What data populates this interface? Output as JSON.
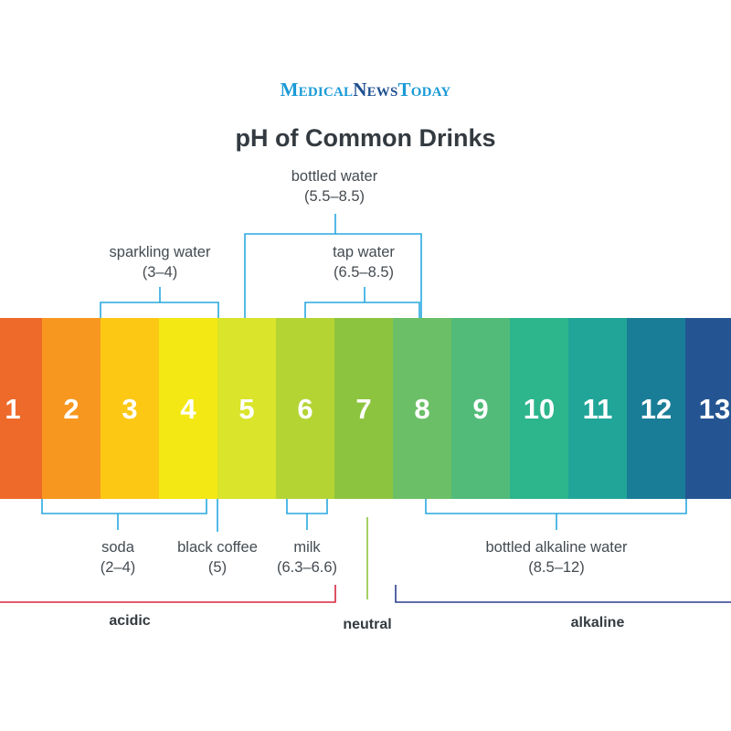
{
  "header": {
    "logo": {
      "m": "M",
      "edical": "EDICAL",
      "n": "N",
      "ews": "EWS",
      "t": "T",
      "oday": "ODAY"
    },
    "title": "pH of Common Drinks"
  },
  "scale": [
    {
      "value": "1",
      "color": "#ee6a2a"
    },
    {
      "value": "2",
      "color": "#f7971f"
    },
    {
      "value": "3",
      "color": "#fcc814"
    },
    {
      "value": "4",
      "color": "#f3e814"
    },
    {
      "value": "5",
      "color": "#d9e42a"
    },
    {
      "value": "6",
      "color": "#b4d434"
    },
    {
      "value": "7",
      "color": "#8dc43f"
    },
    {
      "value": "8",
      "color": "#6bbf66"
    },
    {
      "value": "9",
      "color": "#52bb79"
    },
    {
      "value": "10",
      "color": "#2db58b"
    },
    {
      "value": "11",
      "color": "#21a598"
    },
    {
      "value": "12",
      "color": "#1a7d97"
    },
    {
      "value": "13",
      "color": "#245592"
    }
  ],
  "drinks_above": [
    {
      "name": "sparkling water",
      "range": "(3–4)"
    },
    {
      "name": "bottled water",
      "range": "(5.5–8.5)"
    },
    {
      "name": "tap water",
      "range": "(6.5–8.5)"
    }
  ],
  "drinks_below": [
    {
      "name": "soda",
      "range": "(2–4)"
    },
    {
      "name": "black coffee",
      "range": "(5)"
    },
    {
      "name": "milk",
      "range": "(6.3–6.6)"
    },
    {
      "name": "bottled alkaline water",
      "range": "(8.5–12)"
    }
  ],
  "regions": {
    "acidic": "acidic",
    "neutral": "neutral",
    "alkaline": "alkaline"
  },
  "colors": {
    "bracket": "#29a8df",
    "acidic_line": "#d7263d",
    "neutral_line": "#8dc43f",
    "alkaline_line": "#2a3f8f",
    "text": "#444b51"
  }
}
